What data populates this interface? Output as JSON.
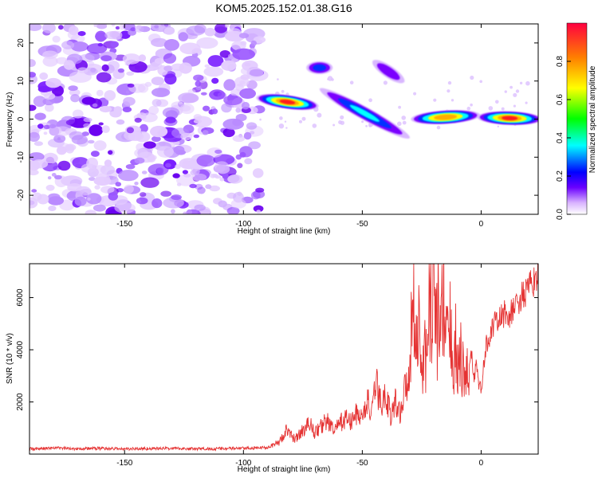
{
  "chart_data": [
    {
      "type": "heatmap",
      "title": "KOM5.2025.152.01.38.G16",
      "xlabel": "Height of straight line (km)",
      "ylabel": "Frequency (Hz)",
      "xlim": [
        -190,
        24
      ],
      "ylim": [
        -25,
        25
      ],
      "x_ticks": [
        -150,
        -100,
        -50,
        0
      ],
      "y_ticks": [
        -20,
        -10,
        0,
        10,
        20
      ],
      "grid": false,
      "noise_region_x": [
        -190,
        -93
      ],
      "features": [
        {
          "x_start": -93,
          "x_end": -70,
          "freq_start": 5.5,
          "freq_end": 3.5,
          "peak_amplitude": 0.95
        },
        {
          "x_start": -72,
          "x_end": -64,
          "freq_start": 13.5,
          "freq_end": 13.5,
          "peak_amplitude": 0.35
        },
        {
          "x_start": -45,
          "x_end": -33,
          "freq_start": 15,
          "freq_end": 10,
          "peak_amplitude": 0.25
        },
        {
          "x_start": -68,
          "x_end": -30,
          "freq_start": 8,
          "freq_end": -5,
          "peak_amplitude": 0.45
        },
        {
          "x_start": -28,
          "x_end": -2,
          "freq_start": 0,
          "freq_end": 1,
          "peak_amplitude": 0.9
        },
        {
          "x_start": 0,
          "x_end": 24,
          "freq_start": 0.5,
          "freq_end": 0,
          "peak_amplitude": 0.95
        }
      ],
      "colorbar": {
        "label": "Normalized spectral amplitude",
        "range": [
          0,
          1
        ],
        "ticks": [
          "0.0",
          "0.2",
          "0.4",
          "0.6",
          "0.8"
        ]
      }
    },
    {
      "type": "line",
      "xlabel": "Height of straight line (km)",
      "ylabel": "SNR (10 * v/v)",
      "xlim": [
        -190,
        24
      ],
      "ylim": [
        0,
        7300
      ],
      "x_ticks": [
        -150,
        -100,
        -50,
        0
      ],
      "y_ticks": [
        2000,
        4000,
        6000
      ],
      "grid": false,
      "line_color": "#e53333",
      "series": [
        {
          "x": [
            -190,
            -180,
            -170,
            -160,
            -150,
            -140,
            -130,
            -120,
            -110,
            -100,
            -95,
            -90,
            -85,
            -82,
            -80,
            -78,
            -75,
            -72,
            -70,
            -68,
            -65,
            -62,
            -60,
            -57,
            -55,
            -52,
            -50,
            -48,
            -46,
            -44,
            -42,
            -40,
            -38,
            -36,
            -34,
            -32,
            -30,
            -28,
            -27,
            -26,
            -25,
            -24,
            -23,
            -22,
            -21,
            -20,
            -19,
            -18,
            -17,
            -16,
            -15,
            -14,
            -13,
            -12,
            -11,
            -10,
            -9,
            -8,
            -7,
            -6,
            -5,
            -4,
            -3,
            -2,
            -1,
            0,
            2,
            4,
            6,
            8,
            10,
            12,
            14,
            16,
            18,
            20,
            22,
            24
          ],
          "values": [
            200,
            230,
            210,
            220,
            200,
            210,
            220,
            200,
            210,
            220,
            230,
            260,
            450,
            900,
            700,
            600,
            900,
            1200,
            800,
            1000,
            1300,
            900,
            1100,
            1400,
            1200,
            1600,
            1300,
            2100,
            1500,
            2700,
            1800,
            2400,
            1400,
            2000,
            1600,
            2500,
            3400,
            7000,
            3800,
            5200,
            2600,
            4600,
            3100,
            6200,
            5200,
            7100,
            4500,
            5600,
            3800,
            7200,
            4500,
            4200,
            4600,
            3600,
            4200,
            3600,
            3700,
            3300,
            3000,
            2900,
            3500,
            3900,
            2800,
            3600,
            2600,
            2500,
            4100,
            4700,
            5000,
            5200,
            5400,
            5300,
            5600,
            5900,
            6100,
            6300,
            6600,
            7100
          ]
        }
      ]
    }
  ]
}
